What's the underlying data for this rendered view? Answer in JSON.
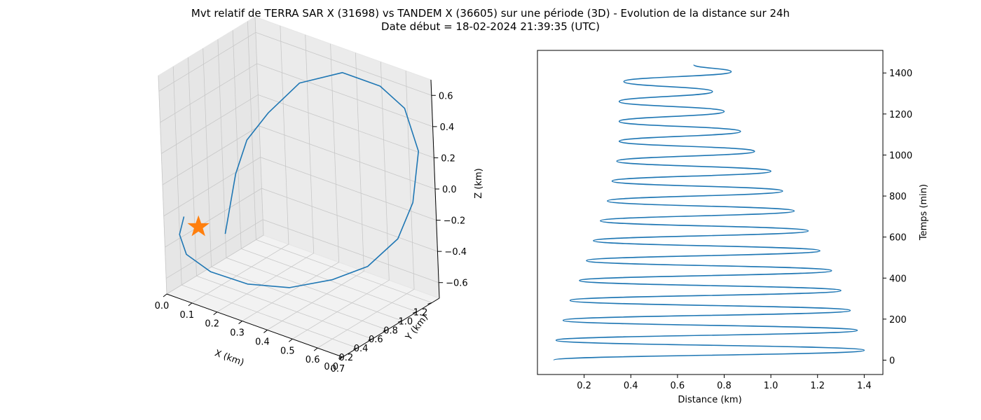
{
  "figure": {
    "title_line1": "Mvt relatif de TERRA SAR X (31698) vs TANDEM X (36605) sur une période (3D) - Evolution de la distance sur 24h",
    "title_line2": "Date début = 18-02-2024 21:39:35 (UTC)"
  },
  "colors": {
    "series": "#1f77b4",
    "marker": "#ff7f0e",
    "grid": "#c8c8c8",
    "pane": "#f2f2f2"
  },
  "chart_data": [
    {
      "type": "line3d",
      "xlabel": "X (km)",
      "ylabel": "Y (km)",
      "zlabel": "Z (km)",
      "xticks": [
        "0.0",
        "0.1",
        "0.2",
        "0.3",
        "0.4",
        "0.5",
        "0.6",
        "0.7"
      ],
      "yticks": [
        "0.0",
        "0.2",
        "0.4",
        "0.6",
        "0.8",
        "1.0",
        "1.2"
      ],
      "zticks": [
        "0.6",
        "0.4",
        "0.2",
        "0.0",
        "−0.2",
        "−0.4",
        "−0.6"
      ],
      "xlim": [
        0.0,
        0.7
      ],
      "ylim": [
        0.0,
        1.3
      ],
      "zlim": [
        -0.7,
        0.7
      ],
      "grid": true,
      "marker": {
        "symbol": "star",
        "point": [
          0.0,
          0.45,
          -0.4
        ]
      },
      "series": [
        {
          "points": [
            [
              0.03,
              0.7,
              -0.5
            ],
            [
              0.02,
              0.8,
              -0.38
            ],
            [
              0.02,
              0.9,
              -0.18
            ],
            [
              0.04,
              1.0,
              0.02
            ],
            [
              0.1,
              1.1,
              0.2
            ],
            [
              0.2,
              1.2,
              0.42
            ],
            [
              0.35,
              1.28,
              0.55
            ],
            [
              0.5,
              1.28,
              0.55
            ],
            [
              0.62,
              1.2,
              0.5
            ],
            [
              0.7,
              1.1,
              0.3
            ],
            [
              0.7,
              1.0,
              0.0
            ],
            [
              0.68,
              0.85,
              -0.2
            ],
            [
              0.6,
              0.7,
              -0.38
            ],
            [
              0.5,
              0.55,
              -0.48
            ],
            [
              0.38,
              0.38,
              -0.55
            ],
            [
              0.26,
              0.22,
              -0.55
            ],
            [
              0.15,
              0.1,
              -0.5
            ],
            [
              0.07,
              0.05,
              -0.42
            ],
            [
              0.03,
              0.1,
              -0.33
            ],
            [
              0.02,
              0.2,
              -0.25
            ]
          ]
        }
      ]
    },
    {
      "type": "line",
      "xlabel": "Distance (km)",
      "ylabel": "Temps (min)",
      "xlim": [
        0.0,
        1.48
      ],
      "ylim": [
        -70,
        1510
      ],
      "xticks": [
        0.2,
        0.4,
        0.6,
        0.8,
        1.0,
        1.2,
        1.4
      ],
      "yticks": [
        0,
        200,
        400,
        600,
        800,
        1000,
        1200,
        1400
      ],
      "xtick_labels": [
        "0.2",
        "0.4",
        "0.6",
        "0.8",
        "1.0",
        "1.2",
        "1.4"
      ],
      "ytick_labels": [
        "0",
        "200",
        "400",
        "600",
        "800",
        "1000",
        "1200",
        "1400"
      ],
      "y_axis_position": "right",
      "grid": false,
      "series": [
        {
          "y": [
            0,
            48,
            97,
            145,
            194,
            242,
            291,
            339,
            388,
            436,
            485,
            533,
            582,
            630,
            679,
            727,
            776,
            824,
            873,
            921,
            970,
            1018,
            1067,
            1115,
            1164,
            1212,
            1261,
            1309,
            1358,
            1406,
            1440
          ],
          "x": [
            0.07,
            1.4,
            0.08,
            1.37,
            0.11,
            1.34,
            0.14,
            1.3,
            0.18,
            1.26,
            0.21,
            1.21,
            0.24,
            1.16,
            0.27,
            1.1,
            0.3,
            1.05,
            0.32,
            1.0,
            0.34,
            0.93,
            0.35,
            0.87,
            0.35,
            0.8,
            0.35,
            0.75,
            0.37,
            0.83,
            0.67
          ]
        }
      ]
    }
  ]
}
